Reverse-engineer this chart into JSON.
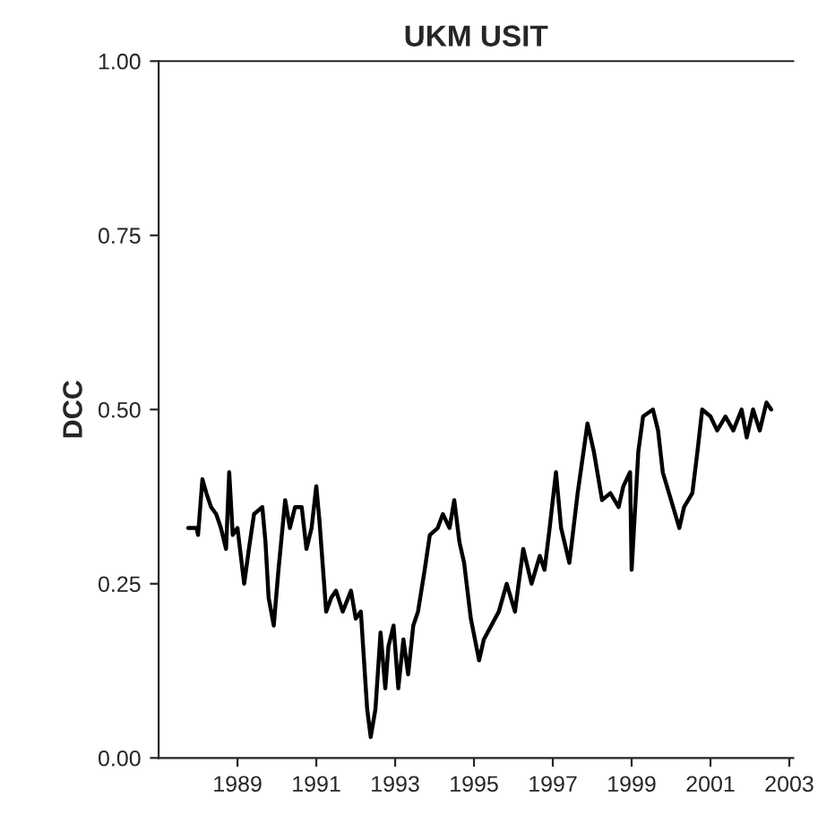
{
  "chart_data": {
    "type": "line",
    "title": "UKM USIT",
    "ylabel": "DCC",
    "xlim": [
      1987.0,
      2003.1
    ],
    "xticks": [
      {
        "value": 1989,
        "label": "1989"
      },
      {
        "value": 1991,
        "label": "1991"
      },
      {
        "value": 1993,
        "label": "1993"
      },
      {
        "value": 1995,
        "label": "1995"
      },
      {
        "value": 1997,
        "label": "1997"
      },
      {
        "value": 1999,
        "label": "1999"
      },
      {
        "value": 2001,
        "label": "2001"
      },
      {
        "value": 2003,
        "label": "2003"
      }
    ],
    "ylim": [
      0,
      1
    ],
    "yticks": [
      {
        "value": 0,
        "label": "0.00"
      },
      {
        "value": 0.25,
        "label": "0.25"
      },
      {
        "value": 0.5,
        "label": "0.50"
      },
      {
        "value": 0.75,
        "label": "0.75"
      },
      {
        "value": 1,
        "label": "1.00"
      }
    ],
    "grid": false,
    "marker": "none",
    "line_style": "solid",
    "series": [
      {
        "color": "#000000",
        "x": [
          1987.75,
          1987.96,
          1988.0,
          1988.11,
          1988.21,
          1988.33,
          1988.46,
          1988.58,
          1988.71,
          1988.79,
          1988.88,
          1989.0,
          1989.17,
          1989.29,
          1989.42,
          1989.63,
          1989.71,
          1989.79,
          1989.92,
          1990.04,
          1990.21,
          1990.33,
          1990.46,
          1990.63,
          1990.75,
          1990.88,
          1991.0,
          1991.08,
          1991.25,
          1991.38,
          1991.5,
          1991.67,
          1991.88,
          1992.0,
          1992.13,
          1992.29,
          1992.38,
          1992.5,
          1992.63,
          1992.75,
          1992.83,
          1992.96,
          1993.08,
          1993.21,
          1993.33,
          1993.46,
          1993.58,
          1993.75,
          1993.88,
          1994.08,
          1994.21,
          1994.38,
          1994.5,
          1994.63,
          1994.75,
          1994.92,
          1995.13,
          1995.25,
          1995.63,
          1995.83,
          1996.04,
          1996.25,
          1996.46,
          1996.67,
          1996.79,
          1996.92,
          1997.08,
          1997.21,
          1997.42,
          1997.63,
          1997.88,
          1998.04,
          1998.25,
          1998.46,
          1998.67,
          1998.79,
          1998.96,
          1999.0,
          1999.17,
          1999.29,
          1999.54,
          1999.67,
          1999.79,
          2000.0,
          2000.21,
          2000.33,
          2000.54,
          2000.67,
          2000.79,
          2001.0,
          2001.17,
          2001.38,
          2001.58,
          2001.79,
          2001.92,
          2002.08,
          2002.25,
          2002.42,
          2002.54
        ],
        "values": [
          0.33,
          0.33,
          0.32,
          0.4,
          0.38,
          0.36,
          0.35,
          0.33,
          0.3,
          0.41,
          0.32,
          0.33,
          0.25,
          0.3,
          0.35,
          0.36,
          0.31,
          0.23,
          0.19,
          0.27,
          0.37,
          0.33,
          0.36,
          0.36,
          0.3,
          0.33,
          0.39,
          0.34,
          0.21,
          0.23,
          0.24,
          0.21,
          0.24,
          0.2,
          0.21,
          0.07,
          0.03,
          0.07,
          0.18,
          0.1,
          0.16,
          0.19,
          0.1,
          0.17,
          0.12,
          0.19,
          0.21,
          0.27,
          0.32,
          0.33,
          0.35,
          0.33,
          0.37,
          0.31,
          0.28,
          0.2,
          0.14,
          0.17,
          0.21,
          0.25,
          0.21,
          0.3,
          0.25,
          0.29,
          0.27,
          0.33,
          0.41,
          0.33,
          0.28,
          0.38,
          0.48,
          0.44,
          0.37,
          0.38,
          0.36,
          0.39,
          0.41,
          0.27,
          0.44,
          0.49,
          0.5,
          0.47,
          0.41,
          0.37,
          0.33,
          0.36,
          0.38,
          0.44,
          0.5,
          0.49,
          0.47,
          0.49,
          0.47,
          0.5,
          0.46,
          0.5,
          0.47,
          0.51,
          0.5
        ]
      }
    ]
  }
}
